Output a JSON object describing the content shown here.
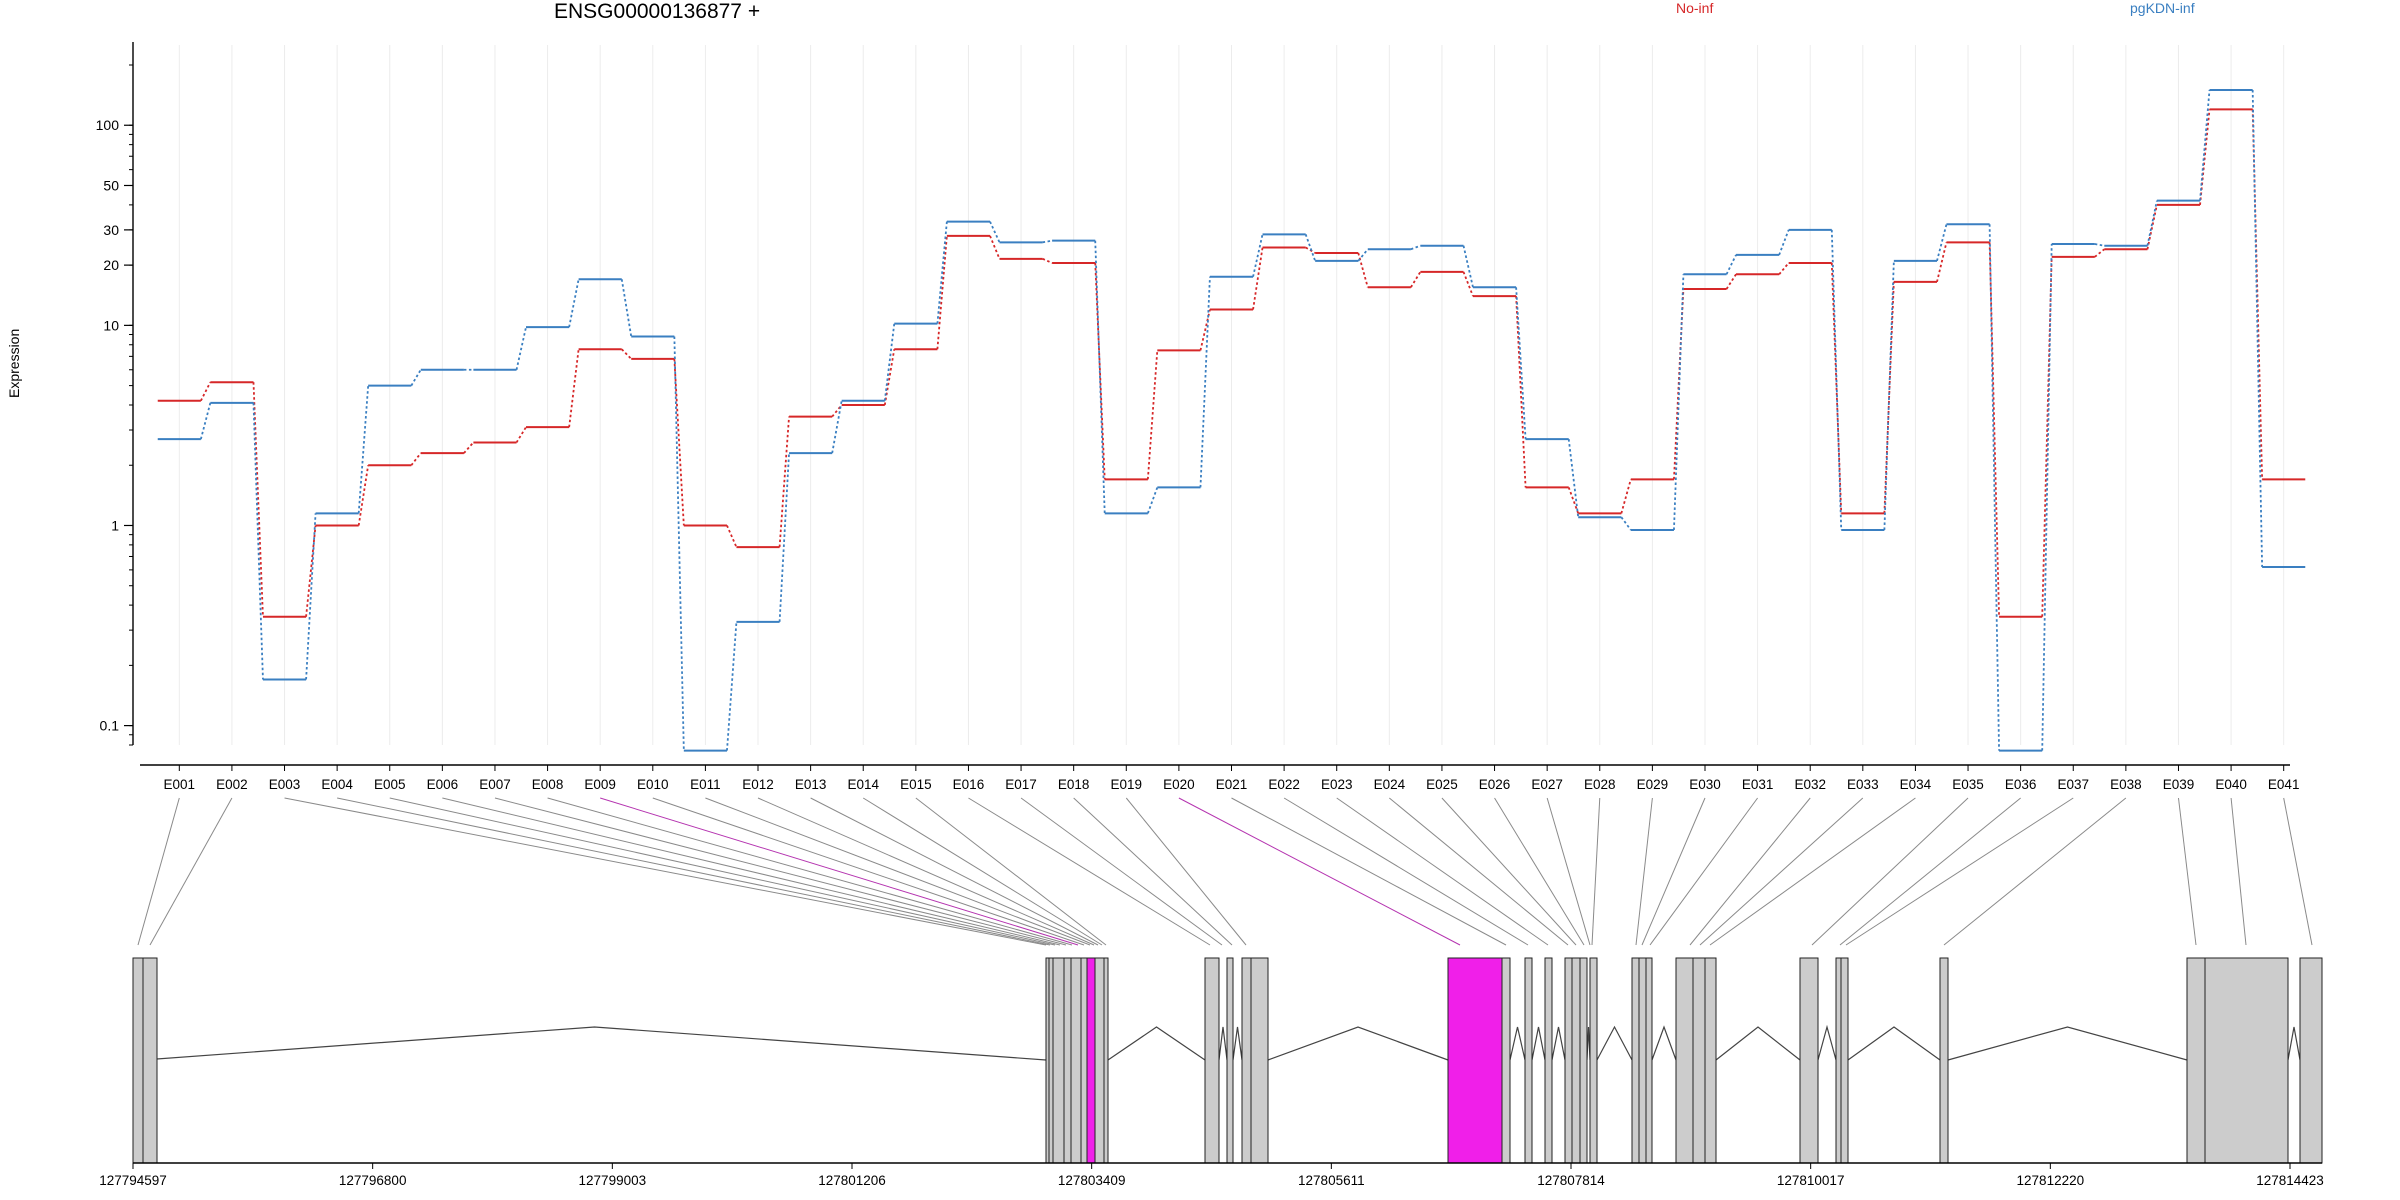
{
  "chart_data": {
    "type": "line",
    "title": "ENSG00000136877 +",
    "ylabel": "Expression",
    "yscale": "log",
    "ylim": [
      0.08,
      200
    ],
    "yticks": [
      {
        "value": 0.1,
        "label": "0.1"
      },
      {
        "value": 1,
        "label": "1"
      },
      {
        "value": 10,
        "label": "10"
      },
      {
        "value": 20,
        "label": "20"
      },
      {
        "value": 30,
        "label": "30"
      },
      {
        "value": 50,
        "label": "50"
      },
      {
        "value": 100,
        "label": "100"
      }
    ],
    "categories": [
      "E001",
      "E002",
      "E003",
      "E004",
      "E005",
      "E006",
      "E007",
      "E008",
      "E009",
      "E010",
      "E011",
      "E012",
      "E013",
      "E014",
      "E015",
      "E016",
      "E017",
      "E018",
      "E019",
      "E020",
      "E021",
      "E022",
      "E023",
      "E024",
      "E025",
      "E026",
      "E027",
      "E028",
      "E029",
      "E030",
      "E031",
      "E032",
      "E033",
      "E034",
      "E035",
      "E036",
      "E037",
      "E038",
      "E039",
      "E040",
      "E041"
    ],
    "series": [
      {
        "name": "No-inf",
        "color": "#d62728",
        "values": [
          4.2,
          5.2,
          0.35,
          1.0,
          2.0,
          2.3,
          2.6,
          3.1,
          7.6,
          6.8,
          1.0,
          0.78,
          3.5,
          4.0,
          7.6,
          28,
          21.5,
          20.5,
          1.7,
          7.5,
          12,
          24.5,
          23,
          15.5,
          18.5,
          14,
          1.55,
          1.15,
          1.7,
          15.2,
          18,
          20.5,
          1.15,
          16.5,
          26,
          0.35,
          22,
          24,
          40,
          120,
          1.7
        ]
      },
      {
        "name": "pgKDN-inf",
        "color": "#3a7fc1",
        "values": [
          2.7,
          4.1,
          0.17,
          1.15,
          5.0,
          6.0,
          6.0,
          9.8,
          17,
          8.8,
          0.075,
          0.33,
          2.3,
          4.2,
          10.2,
          33,
          26,
          26.5,
          1.15,
          1.55,
          17.5,
          28.5,
          21,
          24,
          25,
          15.5,
          2.7,
          1.1,
          0.95,
          18,
          22.5,
          30,
          0.95,
          21,
          32,
          0.075,
          25.5,
          25,
          42,
          150,
          0.62
        ]
      }
    ],
    "genome_axis": {
      "ticks": [
        "127794597",
        "127796800",
        "127799003",
        "127801206",
        "127803409",
        "127805611",
        "127807814",
        "127810017",
        "127812220",
        "127814423"
      ]
    },
    "highlighted_exons": [
      "E009",
      "E020"
    ],
    "grid": "vertical",
    "legend": "top"
  }
}
